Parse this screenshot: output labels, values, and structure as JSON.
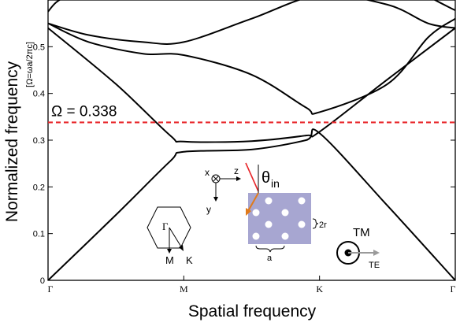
{
  "chart_data": {
    "type": "line",
    "xlabel": "Spatial frequency",
    "ylabel": "Normalized frequency",
    "ylabel_unit": "[Ω=ωa/2πc]",
    "x_categories": [
      "Γ",
      "M",
      "K",
      "Γ"
    ],
    "x_positions": [
      0,
      1,
      2,
      3
    ],
    "xlim": [
      0,
      3
    ],
    "ylim": [
      0,
      0.6
    ],
    "yticks": [
      0,
      0.1,
      0.2,
      0.3,
      0.4,
      0.5
    ],
    "ytick_labels": [
      "0",
      "0.1",
      "0.2",
      "0.3",
      "0.4",
      "0.5"
    ],
    "grid": false,
    "reference_line": {
      "y": 0.338,
      "label": "Ω = 0.338",
      "color": "#e8262a",
      "style": "dashed"
    },
    "bands": [
      {
        "x": [
          0,
          0.5,
          0.9,
          1.0,
          1.5,
          1.9,
          2.0,
          2.5,
          3.0
        ],
        "y": [
          0.0,
          0.14,
          0.255,
          0.275,
          0.28,
          0.3,
          0.315,
          0.16,
          0.0
        ]
      },
      {
        "x": [
          0,
          0.5,
          0.9,
          1.0,
          1.5,
          1.9,
          2.0,
          2.5,
          3.0
        ],
        "y": [
          0.54,
          0.42,
          0.31,
          0.297,
          0.298,
          0.31,
          0.318,
          0.43,
          0.54
        ]
      },
      {
        "x": [
          0,
          0.3,
          0.7,
          1.0,
          1.5,
          1.9,
          2.0,
          2.5,
          2.8,
          3.0
        ],
        "y": [
          0.55,
          0.51,
          0.485,
          0.482,
          0.44,
          0.37,
          0.36,
          0.42,
          0.52,
          0.56
        ]
      },
      {
        "x": [
          0,
          0.3,
          0.7,
          1.0,
          1.5,
          2.0,
          2.5,
          2.8,
          3.0
        ],
        "y": [
          0.55,
          0.525,
          0.51,
          0.51,
          0.56,
          0.61,
          0.59,
          0.55,
          0.54
        ]
      },
      {
        "x": [
          0,
          0.06,
          0.15,
          0.22
        ],
        "y": [
          0.575,
          0.595,
          0.61,
          0.615
        ]
      },
      {
        "x": [
          2.75,
          2.85,
          2.95,
          3.0
        ],
        "y": [
          0.615,
          0.6,
          0.585,
          0.578
        ]
      }
    ]
  },
  "annotations": {
    "coord_x": "x",
    "coord_z": "z",
    "coord_y": "y",
    "theta": "θ",
    "theta_sub": "in",
    "lattice_2r": "2r",
    "lattice_a": "a",
    "bz_gamma": "Γ",
    "bz_m": "M",
    "bz_k": "K",
    "pol_tm": "TM",
    "pol_te": "TE"
  },
  "colors": {
    "curve": "#000000",
    "reference": "#e8262a",
    "lattice_fill": "#a7a6d1",
    "incident_arrow": "#e8262a",
    "refracted_arrow": "#e07a1a",
    "te_arrow": "#9a9a9a"
  }
}
